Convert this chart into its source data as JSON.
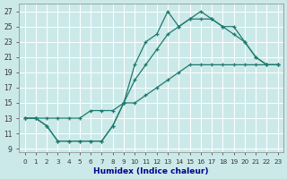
{
  "xlabel": "Humidex (Indice chaleur)",
  "background_color": "#cce9e9",
  "grid_color": "#b8d8d8",
  "line_color": "#1e7a6e",
  "xlim": [
    -0.5,
    23.5
  ],
  "ylim": [
    8.5,
    28
  ],
  "xticks": [
    0,
    1,
    2,
    3,
    4,
    5,
    6,
    7,
    8,
    9,
    10,
    11,
    12,
    13,
    14,
    15,
    16,
    17,
    18,
    19,
    20,
    21,
    22,
    23
  ],
  "yticks": [
    9,
    11,
    13,
    15,
    17,
    19,
    21,
    23,
    25,
    27
  ],
  "line1_x": [
    0,
    1,
    2,
    3,
    4,
    5,
    6,
    7,
    8,
    9,
    10,
    11,
    12,
    13,
    14,
    15,
    16,
    17,
    18,
    19,
    20,
    21,
    22,
    23
  ],
  "line1_y": [
    13,
    13,
    12,
    10,
    10,
    10,
    10,
    10,
    12,
    15,
    20,
    23,
    24,
    27,
    25,
    26,
    27,
    26,
    25,
    24,
    23,
    21,
    20,
    20
  ],
  "line2_x": [
    0,
    1,
    2,
    3,
    4,
    5,
    6,
    7,
    8,
    9,
    10,
    11,
    12,
    13,
    14,
    15,
    16,
    17,
    18,
    19,
    20,
    21,
    22,
    23
  ],
  "line2_y": [
    13,
    13,
    12,
    10,
    10,
    10,
    10,
    10,
    12,
    15,
    18,
    20,
    22,
    24,
    25,
    26,
    26,
    26,
    25,
    25,
    23,
    21,
    20,
    20
  ],
  "line3_x": [
    0,
    1,
    2,
    3,
    4,
    5,
    6,
    7,
    8,
    9,
    10,
    11,
    12,
    13,
    14,
    15,
    16,
    17,
    18,
    19,
    20,
    21,
    22,
    23
  ],
  "line3_y": [
    13,
    13,
    13,
    13,
    13,
    13,
    14,
    14,
    14,
    15,
    15,
    16,
    17,
    18,
    19,
    20,
    20,
    20,
    20,
    20,
    20,
    20,
    20,
    20
  ]
}
